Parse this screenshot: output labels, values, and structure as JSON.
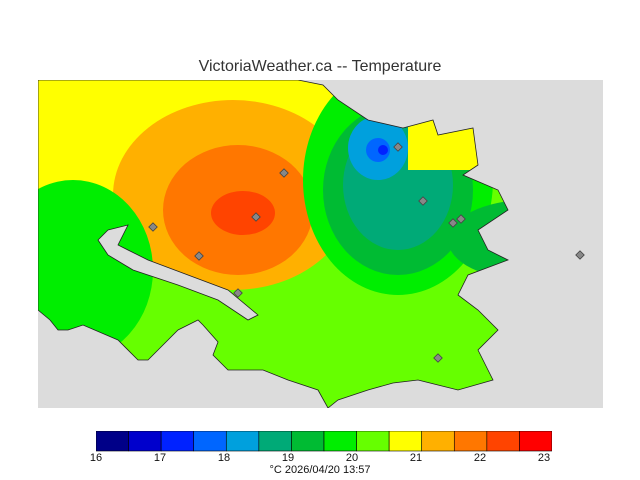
{
  "title": "VictoriaWeather.ca -- Temperature",
  "colorbar": {
    "ticks": [
      "16",
      "17",
      "18",
      "19",
      "20",
      "21",
      "22",
      "23"
    ],
    "colors": [
      "#000088",
      "#0000cc",
      "#0022ff",
      "#0066ff",
      "#00a0dd",
      "#00aa77",
      "#00bb33",
      "#00ee00",
      "#66ff00",
      "#ffff00",
      "#ffb000",
      "#ff7700",
      "#ff4400",
      "#ff0000"
    ]
  },
  "footer": {
    "unit": "°C",
    "timestamp": "2026/04/20 13:57"
  },
  "map": {
    "land_color": "#dcdcdc",
    "station_marker_color": "#888888"
  }
}
